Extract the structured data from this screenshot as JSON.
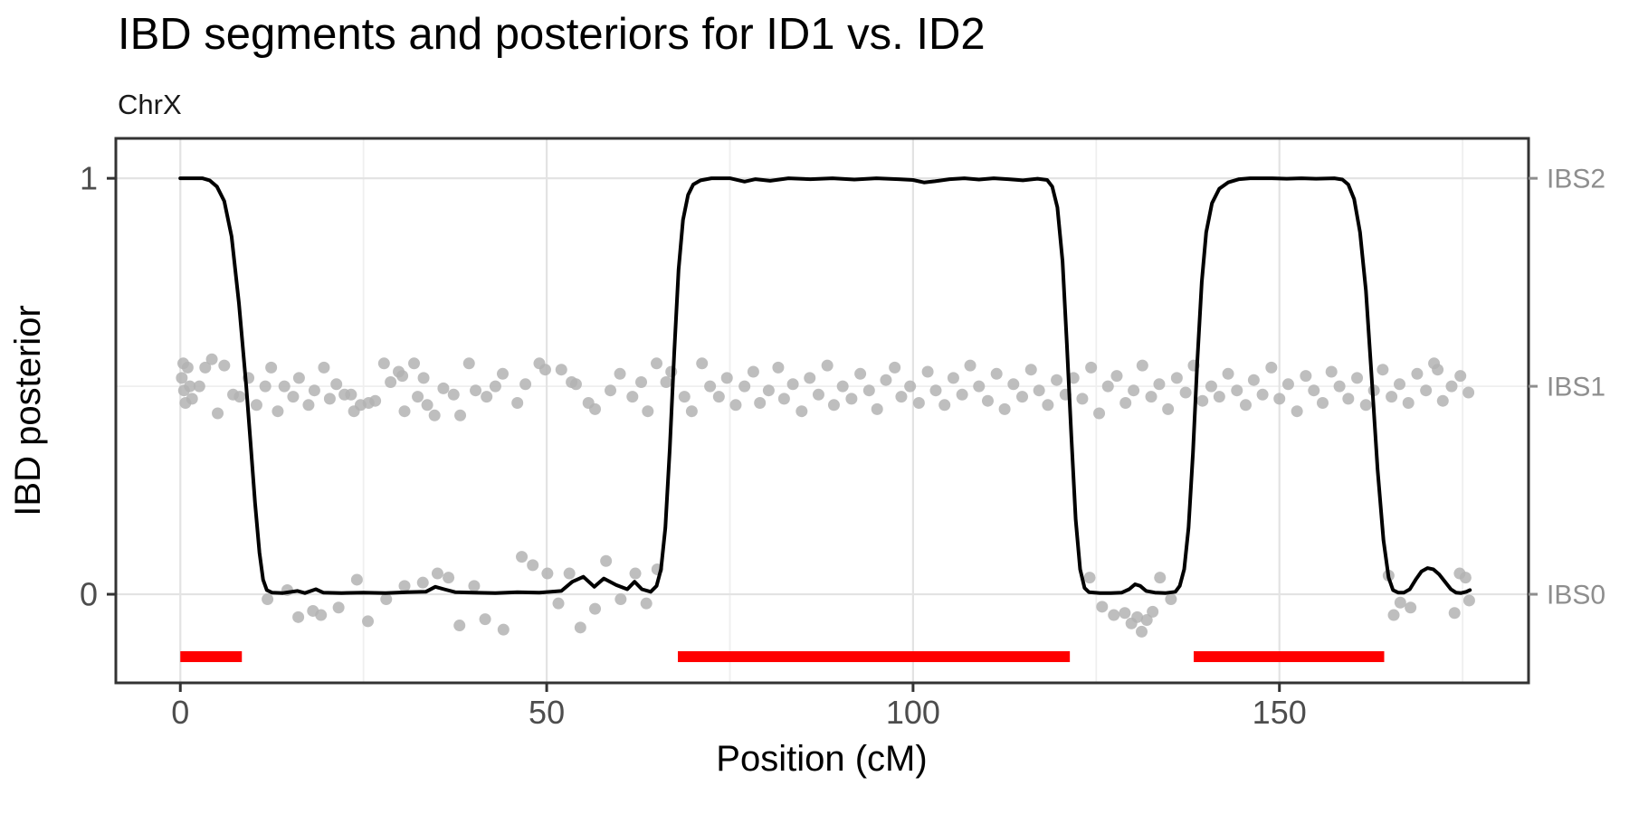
{
  "chart_data": {
    "type": "line",
    "title": "IBD segments and posteriors for ID1 vs. ID2",
    "subtitle": "ChrX",
    "xlabel": "Position (cM)",
    "ylabel": "IBD posterior",
    "legend_position": "none",
    "grid": true,
    "xlim": [
      -8.8,
      184.0
    ],
    "ylim": [
      -0.213,
      1.096
    ],
    "x_major_ticks": [
      {
        "value": 0,
        "label": "0"
      },
      {
        "value": 50,
        "label": "50"
      },
      {
        "value": 100,
        "label": "100"
      },
      {
        "value": 150,
        "label": "150"
      }
    ],
    "x_minor_ticks": [
      25,
      75,
      125,
      175
    ],
    "y_major_ticks": [
      {
        "value": 0,
        "label": "0"
      },
      {
        "value": 1,
        "label": "1"
      }
    ],
    "y_minor_ticks": [
      0.5
    ],
    "right_axis_labels": [
      {
        "value": 1,
        "label": "IBS2"
      },
      {
        "value": 0.5,
        "label": "IBS1"
      },
      {
        "value": 0,
        "label": "IBS0"
      }
    ],
    "ibd_segments": [
      [
        0,
        8.4
      ],
      [
        67.9,
        121.4
      ],
      [
        138.3,
        164.3
      ]
    ],
    "segment_y": -0.15,
    "colors": {
      "posterior_line": "#000000",
      "ibs_points": "#b3b3b3",
      "ibd_segment": "#ff0000",
      "grid_major": "#e3e3e3",
      "grid_minor": "#efefef",
      "panel_border": "#333333",
      "axis_tick": "#333333",
      "axis_text": "#4d4d4d",
      "right_axis_text": "#8e8e8e",
      "title_text": "#000000"
    },
    "posterior_line": [
      [
        0,
        1
      ],
      [
        3,
        1
      ],
      [
        4,
        0.995
      ],
      [
        5,
        0.98
      ],
      [
        6,
        0.945
      ],
      [
        7,
        0.86
      ],
      [
        8,
        0.7
      ],
      [
        9,
        0.5
      ],
      [
        9.6,
        0.36
      ],
      [
        10.2,
        0.22
      ],
      [
        10.8,
        0.1
      ],
      [
        11.3,
        0.035
      ],
      [
        11.8,
        0.01
      ],
      [
        12.5,
        0.004
      ],
      [
        14,
        0.003
      ],
      [
        16,
        0.008
      ],
      [
        17,
        0.003
      ],
      [
        18.5,
        0.012
      ],
      [
        19.5,
        0.004
      ],
      [
        22,
        0.003
      ],
      [
        25,
        0.004
      ],
      [
        28,
        0.003
      ],
      [
        31,
        0.005
      ],
      [
        33.5,
        0.006
      ],
      [
        34.8,
        0.018
      ],
      [
        36,
        0.012
      ],
      [
        37.5,
        0.005
      ],
      [
        40,
        0.004
      ],
      [
        43,
        0.003
      ],
      [
        46,
        0.005
      ],
      [
        49,
        0.004
      ],
      [
        52,
        0.008
      ],
      [
        53.5,
        0.03
      ],
      [
        55,
        0.042
      ],
      [
        56.5,
        0.018
      ],
      [
        57.8,
        0.038
      ],
      [
        59.5,
        0.022
      ],
      [
        61,
        0.012
      ],
      [
        62,
        0.03
      ],
      [
        63,
        0.012
      ],
      [
        64.2,
        0.006
      ],
      [
        65,
        0.02
      ],
      [
        65.6,
        0.06
      ],
      [
        66.2,
        0.16
      ],
      [
        66.8,
        0.35
      ],
      [
        67.4,
        0.58
      ],
      [
        68,
        0.78
      ],
      [
        68.6,
        0.9
      ],
      [
        69.3,
        0.96
      ],
      [
        70,
        0.985
      ],
      [
        71,
        0.995
      ],
      [
        72.5,
        1
      ],
      [
        75,
        1
      ],
      [
        77,
        0.992
      ],
      [
        78.5,
        0.998
      ],
      [
        80.5,
        0.994
      ],
      [
        83,
        1
      ],
      [
        86,
        0.998
      ],
      [
        89,
        1
      ],
      [
        92,
        0.997
      ],
      [
        95,
        1
      ],
      [
        98,
        0.998
      ],
      [
        100,
        0.996
      ],
      [
        101.5,
        0.99
      ],
      [
        103,
        0.993
      ],
      [
        105,
        0.998
      ],
      [
        107,
        1
      ],
      [
        109,
        0.997
      ],
      [
        111,
        1
      ],
      [
        113,
        0.998
      ],
      [
        115,
        0.995
      ],
      [
        117,
        0.999
      ],
      [
        118.3,
        0.996
      ],
      [
        119,
        0.98
      ],
      [
        119.7,
        0.93
      ],
      [
        120.4,
        0.8
      ],
      [
        121,
        0.6
      ],
      [
        121.6,
        0.38
      ],
      [
        122.2,
        0.18
      ],
      [
        122.8,
        0.06
      ],
      [
        123.4,
        0.015
      ],
      [
        124,
        0.005
      ],
      [
        125.5,
        0.003
      ],
      [
        127,
        0.003
      ],
      [
        128.5,
        0.004
      ],
      [
        129.5,
        0.012
      ],
      [
        130.3,
        0.024
      ],
      [
        131,
        0.02
      ],
      [
        131.8,
        0.008
      ],
      [
        133,
        0.004
      ],
      [
        134.5,
        0.003
      ],
      [
        135.8,
        0.006
      ],
      [
        136.4,
        0.02
      ],
      [
        137,
        0.06
      ],
      [
        137.6,
        0.16
      ],
      [
        138.2,
        0.34
      ],
      [
        138.8,
        0.56
      ],
      [
        139.4,
        0.75
      ],
      [
        140,
        0.87
      ],
      [
        140.8,
        0.94
      ],
      [
        141.8,
        0.975
      ],
      [
        143,
        0.99
      ],
      [
        144.5,
        0.998
      ],
      [
        146,
        1
      ],
      [
        149,
        1
      ],
      [
        151,
        0.999
      ],
      [
        153,
        1
      ],
      [
        155,
        0.999
      ],
      [
        157.5,
        1
      ],
      [
        158.6,
        0.997
      ],
      [
        159.4,
        0.985
      ],
      [
        160.2,
        0.95
      ],
      [
        161,
        0.87
      ],
      [
        161.8,
        0.73
      ],
      [
        162.6,
        0.52
      ],
      [
        163.4,
        0.3
      ],
      [
        164.2,
        0.13
      ],
      [
        164.9,
        0.04
      ],
      [
        165.5,
        0.01
      ],
      [
        166.2,
        0.004
      ],
      [
        167,
        0.004
      ],
      [
        167.8,
        0.012
      ],
      [
        168.6,
        0.035
      ],
      [
        169.4,
        0.055
      ],
      [
        170.2,
        0.063
      ],
      [
        171,
        0.06
      ],
      [
        171.8,
        0.048
      ],
      [
        172.6,
        0.03
      ],
      [
        173.4,
        0.012
      ],
      [
        174.1,
        0.004
      ],
      [
        174.8,
        0.003
      ],
      [
        175.5,
        0.006
      ],
      [
        176,
        0.01
      ]
    ],
    "ibs1_points": [
      [
        0.2,
        0.52
      ],
      [
        0.4,
        0.555
      ],
      [
        0.5,
        0.49
      ],
      [
        0.7,
        0.46
      ],
      [
        1.0,
        0.545
      ],
      [
        1.3,
        0.5
      ],
      [
        1.6,
        0.47
      ],
      [
        2.6,
        0.5
      ],
      [
        3.4,
        0.545
      ],
      [
        4.3,
        0.565
      ],
      [
        5.1,
        0.435
      ],
      [
        6.0,
        0.55
      ],
      [
        7.2,
        0.48
      ],
      [
        8.1,
        0.475
      ],
      [
        9.3,
        0.52
      ],
      [
        10.4,
        0.455
      ],
      [
        11.6,
        0.5
      ],
      [
        12.4,
        0.545
      ],
      [
        13.3,
        0.44
      ],
      [
        14.2,
        0.5
      ],
      [
        15.4,
        0.475
      ],
      [
        16.2,
        0.52
      ],
      [
        17.5,
        0.455
      ],
      [
        18.3,
        0.49
      ],
      [
        19.6,
        0.545
      ],
      [
        20.4,
        0.47
      ],
      [
        21.3,
        0.505
      ],
      [
        22.4,
        0.48
      ],
      [
        23.3,
        0.48
      ],
      [
        23.7,
        0.44
      ],
      [
        24.6,
        0.455
      ],
      [
        25.7,
        0.46
      ],
      [
        26.6,
        0.465
      ],
      [
        27.8,
        0.555
      ],
      [
        28.7,
        0.51
      ],
      [
        29.8,
        0.535
      ],
      [
        30.3,
        0.525
      ],
      [
        30.6,
        0.44
      ],
      [
        31.9,
        0.555
      ],
      [
        32.4,
        0.475
      ],
      [
        33.2,
        0.52
      ],
      [
        33.7,
        0.455
      ],
      [
        34.7,
        0.43
      ],
      [
        35.9,
        0.495
      ],
      [
        37.3,
        0.48
      ],
      [
        38.2,
        0.43
      ],
      [
        39.4,
        0.555
      ],
      [
        40.3,
        0.49
      ],
      [
        41.8,
        0.475
      ],
      [
        43.0,
        0.5
      ],
      [
        44.0,
        0.53
      ],
      [
        46.0,
        0.46
      ],
      [
        47.1,
        0.505
      ],
      [
        49.0,
        0.555
      ],
      [
        49.8,
        0.54
      ],
      [
        52.0,
        0.54
      ],
      [
        53.4,
        0.51
      ],
      [
        54.0,
        0.505
      ],
      [
        55.7,
        0.46
      ],
      [
        56.6,
        0.445
      ],
      [
        58.7,
        0.49
      ],
      [
        60.0,
        0.53
      ],
      [
        61.7,
        0.475
      ],
      [
        62.9,
        0.51
      ],
      [
        63.8,
        0.44
      ],
      [
        65.0,
        0.555
      ],
      [
        66.3,
        0.51
      ],
      [
        67.0,
        0.535
      ],
      [
        68.8,
        0.475
      ],
      [
        69.8,
        0.44
      ],
      [
        71.2,
        0.555
      ],
      [
        72.3,
        0.5
      ],
      [
        73.5,
        0.475
      ],
      [
        74.6,
        0.52
      ],
      [
        75.8,
        0.455
      ],
      [
        77.0,
        0.5
      ],
      [
        78.2,
        0.535
      ],
      [
        79.1,
        0.46
      ],
      [
        80.3,
        0.49
      ],
      [
        81.6,
        0.545
      ],
      [
        82.4,
        0.47
      ],
      [
        83.6,
        0.505
      ],
      [
        84.8,
        0.44
      ],
      [
        85.9,
        0.52
      ],
      [
        87.1,
        0.48
      ],
      [
        88.3,
        0.55
      ],
      [
        89.2,
        0.455
      ],
      [
        90.4,
        0.5
      ],
      [
        91.6,
        0.47
      ],
      [
        92.8,
        0.53
      ],
      [
        94.0,
        0.49
      ],
      [
        95.1,
        0.445
      ],
      [
        96.3,
        0.515
      ],
      [
        97.5,
        0.545
      ],
      [
        98.4,
        0.475
      ],
      [
        99.6,
        0.5
      ],
      [
        100.8,
        0.46
      ],
      [
        102.0,
        0.535
      ],
      [
        103.1,
        0.49
      ],
      [
        104.3,
        0.455
      ],
      [
        105.5,
        0.52
      ],
      [
        106.7,
        0.48
      ],
      [
        107.8,
        0.55
      ],
      [
        109.0,
        0.5
      ],
      [
        110.2,
        0.465
      ],
      [
        111.4,
        0.53
      ],
      [
        112.5,
        0.445
      ],
      [
        113.7,
        0.505
      ],
      [
        114.9,
        0.475
      ],
      [
        116.1,
        0.54
      ],
      [
        117.2,
        0.49
      ],
      [
        118.4,
        0.455
      ],
      [
        119.6,
        0.515
      ],
      [
        120.8,
        0.48
      ],
      [
        121.9,
        0.52
      ],
      [
        123.1,
        0.47
      ],
      [
        124.3,
        0.545
      ],
      [
        125.4,
        0.435
      ],
      [
        126.6,
        0.5
      ],
      [
        127.8,
        0.525
      ],
      [
        129.0,
        0.46
      ],
      [
        130.1,
        0.49
      ],
      [
        131.3,
        0.55
      ],
      [
        132.5,
        0.475
      ],
      [
        133.6,
        0.505
      ],
      [
        134.8,
        0.445
      ],
      [
        136.0,
        0.52
      ],
      [
        137.2,
        0.485
      ],
      [
        138.3,
        0.55
      ],
      [
        139.5,
        0.465
      ],
      [
        140.7,
        0.5
      ],
      [
        141.8,
        0.475
      ],
      [
        143.0,
        0.53
      ],
      [
        144.2,
        0.49
      ],
      [
        145.4,
        0.455
      ],
      [
        146.5,
        0.515
      ],
      [
        147.7,
        0.48
      ],
      [
        148.9,
        0.545
      ],
      [
        150.0,
        0.47
      ],
      [
        151.2,
        0.505
      ],
      [
        152.4,
        0.44
      ],
      [
        153.6,
        0.525
      ],
      [
        154.7,
        0.49
      ],
      [
        155.9,
        0.46
      ],
      [
        157.1,
        0.535
      ],
      [
        158.2,
        0.5
      ],
      [
        159.4,
        0.47
      ],
      [
        160.6,
        0.52
      ],
      [
        161.8,
        0.455
      ],
      [
        162.9,
        0.49
      ],
      [
        164.1,
        0.54
      ],
      [
        165.3,
        0.475
      ],
      [
        166.4,
        0.505
      ],
      [
        167.6,
        0.46
      ],
      [
        168.8,
        0.53
      ],
      [
        170.0,
        0.49
      ],
      [
        171.1,
        0.555
      ],
      [
        171.6,
        0.54
      ],
      [
        172.3,
        0.465
      ],
      [
        173.5,
        0.5
      ],
      [
        174.7,
        0.525
      ],
      [
        175.8,
        0.485
      ]
    ],
    "ibs0_points": [
      [
        11.9,
        -0.012
      ],
      [
        14.6,
        0.01
      ],
      [
        16.1,
        -0.055
      ],
      [
        18.1,
        -0.04
      ],
      [
        19.2,
        -0.05
      ],
      [
        21.6,
        -0.032
      ],
      [
        24.1,
        0.035
      ],
      [
        25.6,
        -0.065
      ],
      [
        28.1,
        -0.012
      ],
      [
        30.6,
        0.02
      ],
      [
        33.1,
        0.028
      ],
      [
        35.1,
        0.05
      ],
      [
        36.6,
        0.04
      ],
      [
        38.1,
        -0.075
      ],
      [
        40.1,
        0.02
      ],
      [
        41.6,
        -0.06
      ],
      [
        44.1,
        -0.085
      ],
      [
        46.6,
        0.09
      ],
      [
        48.1,
        0.07
      ],
      [
        50.1,
        0.05
      ],
      [
        51.6,
        -0.022
      ],
      [
        53.1,
        0.05
      ],
      [
        54.6,
        -0.08
      ],
      [
        56.6,
        -0.035
      ],
      [
        58.1,
        0.08
      ],
      [
        60.1,
        -0.012
      ],
      [
        62.1,
        0.05
      ],
      [
        63.6,
        -0.022
      ],
      [
        65.1,
        0.06
      ],
      [
        124.1,
        0.04
      ],
      [
        125.8,
        -0.03
      ],
      [
        127.4,
        -0.05
      ],
      [
        128.9,
        -0.045
      ],
      [
        129.8,
        -0.07
      ],
      [
        130.6,
        -0.055
      ],
      [
        131.2,
        -0.09
      ],
      [
        131.9,
        -0.062
      ],
      [
        132.7,
        -0.042
      ],
      [
        133.7,
        0.04
      ],
      [
        135.2,
        -0.012
      ],
      [
        164.9,
        0.045
      ],
      [
        165.6,
        -0.05
      ],
      [
        166.5,
        -0.02
      ],
      [
        167.9,
        -0.032
      ],
      [
        173.9,
        -0.045
      ],
      [
        174.6,
        0.05
      ],
      [
        175.4,
        0.04
      ],
      [
        175.9,
        -0.015
      ]
    ]
  }
}
